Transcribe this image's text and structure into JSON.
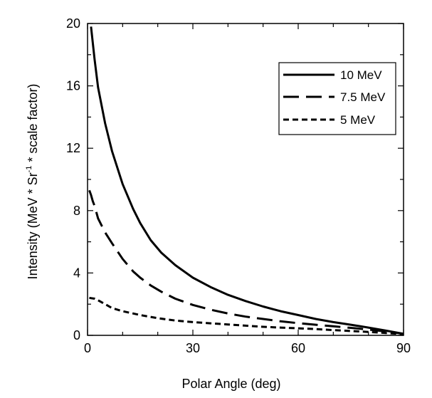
{
  "chart_data": {
    "type": "line",
    "title": "",
    "xlabel": "Polar Angle (deg)",
    "ylabel": "Intensity (MeV * Sr",
    "ylabel_superscript": "-1",
    "ylabel_suffix": " * scale factor)",
    "xlim": [
      0,
      90
    ],
    "ylim": [
      0,
      20
    ],
    "x_ticks": [
      "0",
      "30",
      "60",
      "90"
    ],
    "y_ticks": [
      "0",
      "4",
      "8",
      "12",
      "16",
      "20"
    ],
    "grid": false,
    "legend_position": "top-right",
    "series": [
      {
        "name": "10 MeV",
        "style": "solid",
        "x": [
          1,
          2,
          3,
          5,
          7,
          10,
          13,
          15,
          18,
          21,
          25,
          30,
          35,
          40,
          45,
          50,
          55,
          60,
          65,
          70,
          75,
          80,
          85,
          90
        ],
        "y": [
          19.8,
          17.7,
          15.9,
          13.6,
          11.8,
          9.7,
          8.1,
          7.2,
          6.1,
          5.3,
          4.5,
          3.7,
          3.1,
          2.6,
          2.2,
          1.85,
          1.55,
          1.3,
          1.05,
          0.85,
          0.68,
          0.5,
          0.3,
          0.1
        ]
      },
      {
        "name": "7.5 MeV",
        "style": "long-dash",
        "x": [
          0.5,
          1,
          1.5,
          2,
          3,
          5,
          7,
          10,
          13,
          15,
          18,
          21,
          25,
          30,
          35,
          40,
          45,
          50,
          55,
          60,
          65,
          70,
          75,
          80,
          85,
          90
        ],
        "y": [
          9.3,
          9.0,
          8.6,
          8.3,
          7.5,
          6.6,
          5.9,
          4.9,
          4.1,
          3.7,
          3.2,
          2.8,
          2.35,
          1.95,
          1.65,
          1.4,
          1.2,
          1.05,
          0.9,
          0.78,
          0.68,
          0.58,
          0.48,
          0.37,
          0.25,
          0.1
        ]
      },
      {
        "name": "5 MeV",
        "style": "short-dash",
        "x": [
          0.5,
          2,
          3,
          5,
          7,
          10,
          13,
          15,
          20,
          25,
          30,
          35,
          40,
          45,
          50,
          55,
          60,
          65,
          70,
          75,
          80,
          85,
          90
        ],
        "y": [
          2.4,
          2.35,
          2.25,
          2.0,
          1.75,
          1.55,
          1.4,
          1.3,
          1.1,
          0.95,
          0.85,
          0.77,
          0.7,
          0.62,
          0.55,
          0.5,
          0.45,
          0.4,
          0.34,
          0.28,
          0.22,
          0.15,
          0.08
        ]
      }
    ]
  }
}
